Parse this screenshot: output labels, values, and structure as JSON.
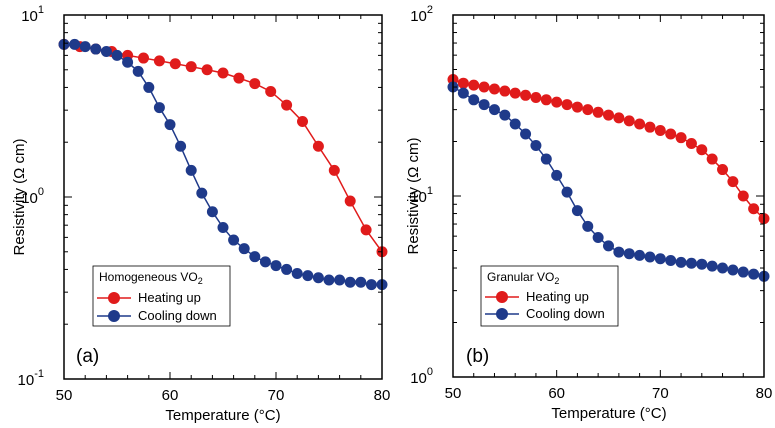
{
  "chart_data": [
    {
      "panel_label": "(a)",
      "type": "line",
      "xlabel": "Temperature (°C)",
      "ylabel": "Resistivity (Ω cm)",
      "xlim": [
        50,
        80
      ],
      "ylim": [
        0.1,
        10
      ],
      "yscale": "log",
      "x_ticks": [
        "50",
        "60",
        "70",
        "80"
      ],
      "y_ticks": [
        {
          "base": "10",
          "exp": "-1"
        },
        {
          "base": "10",
          "exp": "0"
        },
        {
          "base": "10",
          "exp": "1"
        }
      ],
      "legend": {
        "placement": "bottom-left",
        "title": "Homogeneous VO",
        "title_sub": "2"
      },
      "series": [
        {
          "name": "Heating up",
          "color": "#e01b1b",
          "x": [
            50,
            51.5,
            53,
            54.5,
            56,
            57.5,
            59,
            60.5,
            62,
            63.5,
            65,
            66.5,
            68,
            69.5,
            71,
            72.5,
            74,
            75.5,
            77,
            78.5,
            80
          ],
          "y": [
            6.9,
            6.7,
            6.5,
            6.3,
            6.0,
            5.8,
            5.6,
            5.4,
            5.2,
            5.0,
            4.8,
            4.5,
            4.2,
            3.8,
            3.2,
            2.6,
            1.9,
            1.4,
            0.95,
            0.66,
            0.5
          ]
        },
        {
          "name": "Cooling down",
          "color": "#1f3a8a",
          "x": [
            50,
            51,
            52,
            53,
            54,
            55,
            56,
            57,
            58,
            59,
            60,
            61,
            62,
            63,
            64,
            65,
            66,
            67,
            68,
            69,
            70,
            71,
            72,
            73,
            74,
            75,
            76,
            77,
            78,
            79,
            80
          ],
          "y": [
            6.9,
            6.9,
            6.7,
            6.5,
            6.3,
            6.0,
            5.5,
            4.9,
            4.0,
            3.1,
            2.5,
            1.9,
            1.4,
            1.05,
            0.83,
            0.68,
            0.58,
            0.52,
            0.47,
            0.44,
            0.42,
            0.4,
            0.38,
            0.37,
            0.36,
            0.35,
            0.35,
            0.34,
            0.34,
            0.33,
            0.33
          ]
        }
      ]
    },
    {
      "panel_label": "(b)",
      "type": "line",
      "xlabel": "Temperature (°C)",
      "ylabel": "Resistivity (Ω cm)",
      "xlim": [
        50,
        80
      ],
      "ylim": [
        1,
        100
      ],
      "yscale": "log",
      "x_ticks": [
        "50",
        "60",
        "70",
        "80"
      ],
      "y_ticks": [
        {
          "base": "10",
          "exp": "0"
        },
        {
          "base": "10",
          "exp": "1"
        },
        {
          "base": "10",
          "exp": "2"
        }
      ],
      "legend": {
        "placement": "bottom-left",
        "title": "Granular VO",
        "title_sub": "2"
      },
      "series": [
        {
          "name": "Heating up",
          "color": "#e01b1b",
          "x": [
            50,
            51,
            52,
            53,
            54,
            55,
            56,
            57,
            58,
            59,
            60,
            61,
            62,
            63,
            64,
            65,
            66,
            67,
            68,
            69,
            70,
            71,
            72,
            73,
            74,
            75,
            76,
            77,
            78,
            79,
            80
          ],
          "y": [
            44,
            42,
            41,
            40,
            39,
            38,
            37,
            36,
            35,
            34,
            33,
            32,
            31,
            30,
            29,
            28,
            27,
            26,
            25,
            24,
            23,
            22,
            21,
            19.5,
            18,
            16,
            14,
            12,
            10,
            8.5,
            7.5
          ]
        },
        {
          "name": "Cooling down",
          "color": "#1f3a8a",
          "x": [
            50,
            51,
            52,
            53,
            54,
            55,
            56,
            57,
            58,
            59,
            60,
            61,
            62,
            63,
            64,
            65,
            66,
            67,
            68,
            69,
            70,
            71,
            72,
            73,
            74,
            75,
            76,
            77,
            78,
            79,
            80
          ],
          "y": [
            40,
            37,
            34,
            32,
            30,
            28,
            25,
            22,
            19,
            16,
            13,
            10.5,
            8.3,
            6.8,
            5.9,
            5.3,
            4.9,
            4.8,
            4.7,
            4.6,
            4.5,
            4.4,
            4.3,
            4.25,
            4.2,
            4.1,
            4.0,
            3.9,
            3.8,
            3.7,
            3.6
          ]
        }
      ]
    }
  ]
}
